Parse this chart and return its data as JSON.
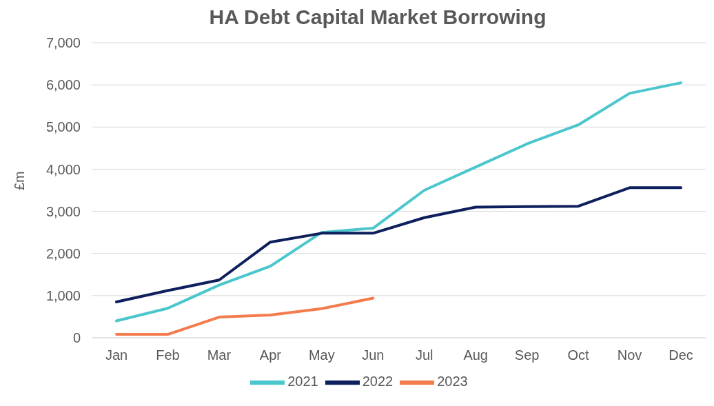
{
  "chart_data": {
    "type": "line",
    "title": "HA Debt Capital Market Borrowing",
    "ylabel": "£m",
    "categories": [
      "Jan",
      "Feb",
      "Mar",
      "Apr",
      "May",
      "Jun",
      "Jul",
      "Aug",
      "Sep",
      "Oct",
      "Nov",
      "Dec"
    ],
    "series": [
      {
        "name": "2021",
        "color": "#4bc6cc",
        "values": [
          400,
          700,
          1250,
          1700,
          2500,
          2600,
          3500,
          4050,
          4600,
          5050,
          5800,
          6050
        ]
      },
      {
        "name": "2022",
        "color": "#0d1f5c",
        "values": [
          850,
          1120,
          1370,
          2270,
          2480,
          2480,
          2850,
          3100,
          3110,
          3120,
          3560,
          3560
        ]
      },
      {
        "name": "2023",
        "color": "#f47c4c",
        "values": [
          80,
          80,
          490,
          540,
          690,
          940,
          null,
          null,
          null,
          null,
          null,
          null
        ]
      }
    ],
    "ylim": [
      0,
      7000
    ],
    "yticks": [
      0,
      {
        "value": 1000,
        "label": "1,000"
      },
      {
        "value": 2000,
        "label": "2,000"
      },
      {
        "value": 3000,
        "label": "3,000"
      },
      {
        "value": 4000,
        "label": "4,000"
      },
      {
        "value": 5000,
        "label": "5,000"
      },
      {
        "value": 6000,
        "label": "6,000"
      },
      {
        "value": 7000,
        "label": "7,000"
      }
    ],
    "grid": "y",
    "legend": "bottom",
    "marker": "none",
    "line_style": "solid"
  }
}
